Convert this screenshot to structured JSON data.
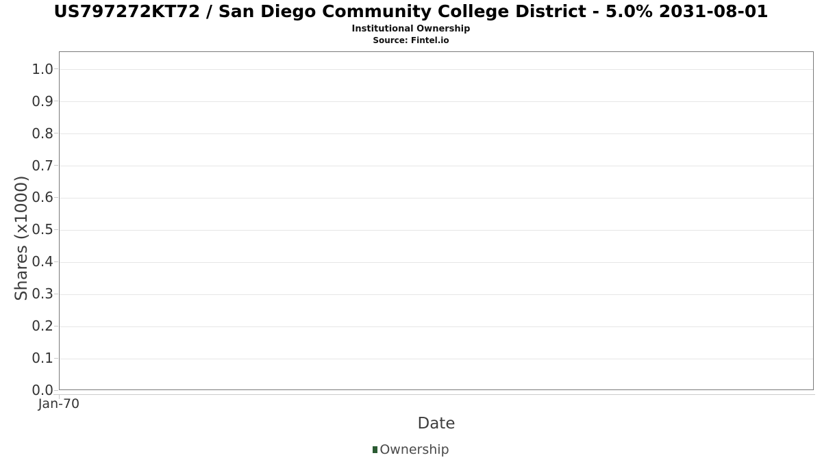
{
  "header": {
    "title": "US797272KT72 / San Diego Community College District - 5.0% 2031-08-01",
    "subtitle": "Institutional Ownership",
    "source": "Source: Fintel.io"
  },
  "chart_data": {
    "type": "line",
    "title": "US797272KT72 / San Diego Community College District - 5.0% 2031-08-01",
    "subtitle": "Institutional Ownership",
    "source": "Source: Fintel.io",
    "xlabel": "Date",
    "ylabel": "Shares (x1000)",
    "ylim": [
      0.0,
      1.055
    ],
    "yticks": [
      0.0,
      0.1,
      0.2,
      0.3,
      0.4,
      0.5,
      0.6,
      0.7,
      0.8,
      0.9,
      1.0
    ],
    "ytick_decimals": 1,
    "xticks": [
      "Jan-70"
    ],
    "grid": true,
    "legend_position": "bottom",
    "series": [
      {
        "name": "Ownership",
        "color": "#2b5b33",
        "x": [],
        "values": []
      }
    ],
    "colors": {
      "plot_border": "#7a7a7a",
      "gridline": "#e6e6e6",
      "axis_line": "#cccccc",
      "tick_text": "#333333",
      "axis_title_text": "#3d3d3d",
      "legend_marker": "#2b5b33"
    }
  }
}
